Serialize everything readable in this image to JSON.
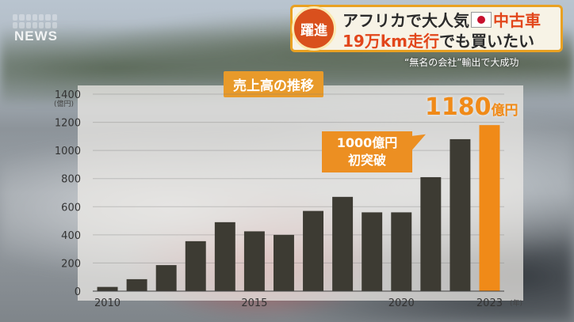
{
  "logo": {
    "text": "NEWS"
  },
  "headline": {
    "badge": "躍進",
    "line1_prefix": "アフリカで大人気",
    "line1_suffix": "中古車",
    "line2_accent": "19万km走行",
    "line2_plain": "でも買いたい"
  },
  "subline": "“無名の会社”輸出で大成功",
  "chart_data": {
    "type": "bar",
    "title": "売上高の推移",
    "ylabel": "(億円)",
    "xunit": "(年)",
    "ylim": [
      0,
      1400
    ],
    "yticks": [
      0,
      200,
      400,
      600,
      800,
      1000,
      1200,
      1400
    ],
    "categories": [
      "2010",
      "2011",
      "2012",
      "2013",
      "2014",
      "2015",
      "2016",
      "2017",
      "2018",
      "2019",
      "2020",
      "2021",
      "2022",
      "2023"
    ],
    "x_tick_labels": [
      "2010",
      "2015",
      "2020",
      "2023"
    ],
    "values": [
      30,
      85,
      185,
      355,
      490,
      425,
      400,
      570,
      670,
      560,
      560,
      810,
      1080,
      1180
    ],
    "bar_color": "#3d3b33",
    "highlight_color": "#f08a18",
    "highlight_label": {
      "value": "1180",
      "unit": "億円"
    },
    "annotation": {
      "line1": "1000億円",
      "line2": "初突破"
    }
  }
}
